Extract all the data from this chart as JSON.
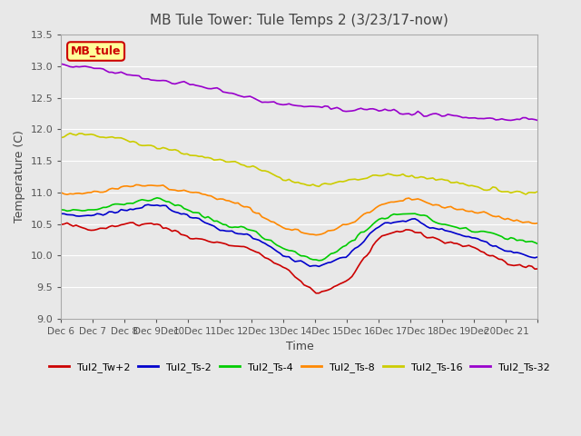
{
  "title": "MB Tule Tower: Tule Temps 2 (3/23/17-now)",
  "xlabel": "Time",
  "ylabel": "Temperature (C)",
  "ylim": [
    9.0,
    13.5
  ],
  "yticks": [
    9.0,
    9.5,
    10.0,
    10.5,
    11.0,
    11.5,
    12.0,
    12.5,
    13.0,
    13.5
  ],
  "xtick_labels": [
    "Dec 6",
    "Dec 7",
    "Dec 8",
    "Dec 9Dec",
    "10Dec",
    "11Dec",
    "12Dec",
    "13Dec",
    "14Dec",
    "15Dec",
    "16Dec",
    "17Dec",
    "18Dec",
    "19Dec",
    "20Dec 21"
  ],
  "background_color": "#e8e8e8",
  "plot_bg_color": "#e8e8e8",
  "legend_label": "MB_tule",
  "legend_bg": "#ffff99",
  "legend_border": "#cc0000",
  "series_colors": [
    "#cc0000",
    "#0000cc",
    "#00cc00",
    "#ff8800",
    "#cccc00",
    "#9900cc"
  ],
  "series_labels": [
    "Tul2_Tw+2",
    "Tul2_Ts-2",
    "Tul2_Ts-4",
    "Tul2_Ts-8",
    "Tul2_Ts-16",
    "Tul2_Ts-32"
  ],
  "n_points": 160
}
